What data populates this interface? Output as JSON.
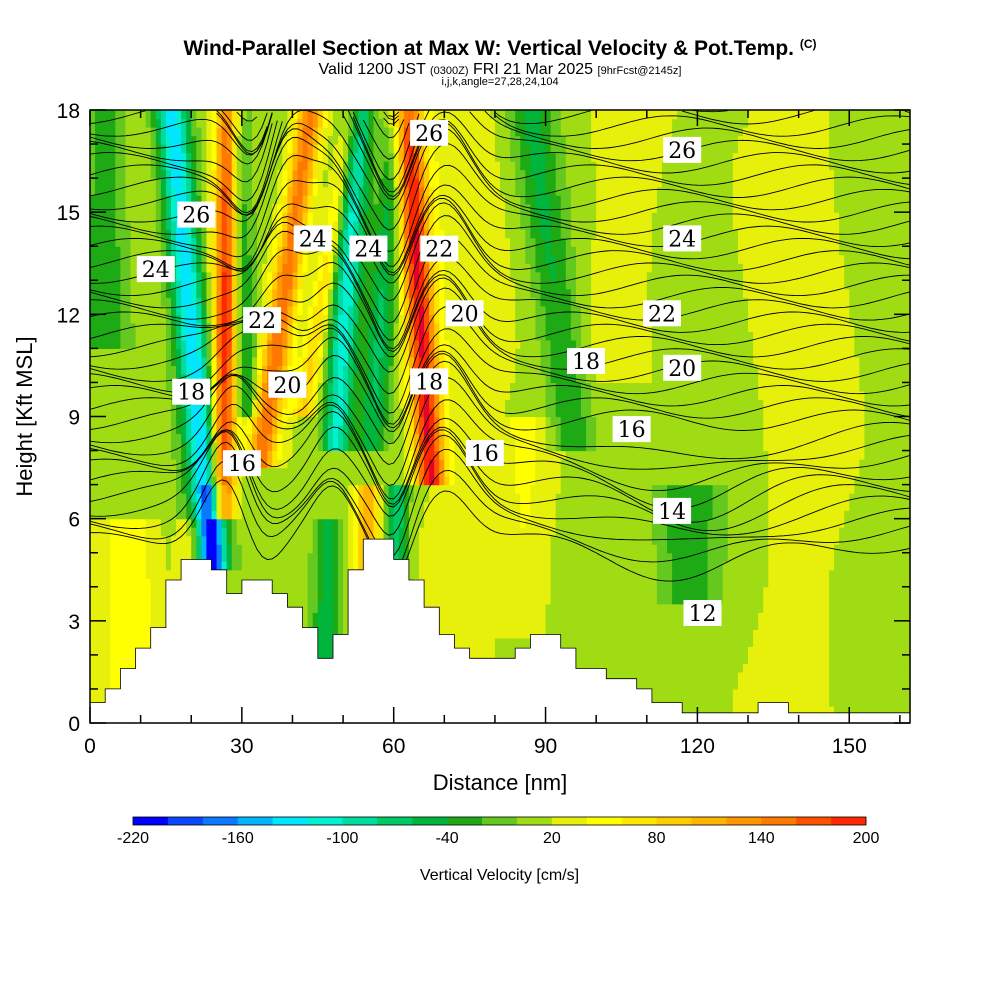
{
  "header": {
    "title": "Wind-Parallel Section at Max W: Vertical Velocity & Pot.Temp.",
    "title_mark": "(C)",
    "valid_a": "Valid 1200 JST",
    "valid_utc": "(0300Z)",
    "valid_b": "FRI 21 Mar 2025",
    "forecast": "[9hrFcst@2145z]",
    "params": "i,j,k,angle=27,28,24,104"
  },
  "chart_data": {
    "type": "heatmap",
    "xlabel": "Distance [nm]",
    "ylabel": "Height [Kft MSL]",
    "xlim": [
      0,
      162
    ],
    "ylim": [
      0,
      18
    ],
    "x_ticks": [
      "0",
      "30",
      "60",
      "90",
      "120",
      "150"
    ],
    "x_tick_values": [
      0,
      30,
      60,
      90,
      120,
      150
    ],
    "y_ticks": [
      "0",
      "3",
      "6",
      "9",
      "12",
      "15",
      "18"
    ],
    "y_tick_values": [
      0,
      3,
      6,
      9,
      12,
      15,
      18
    ],
    "colorbar": {
      "label": "Vertical Velocity [cm/s]",
      "range": [
        -220,
        200
      ],
      "step": 20,
      "tick_labels": [
        "-220",
        "-160",
        "-100",
        "-40",
        "20",
        "80",
        "140",
        "200"
      ],
      "tick_values": [
        -220,
        -160,
        -100,
        -40,
        20,
        80,
        140,
        200
      ],
      "colors": [
        "#0000ff",
        "#0a46ff",
        "#0a78ff",
        "#00b4ff",
        "#00e6ff",
        "#00f0d2",
        "#00dca0",
        "#00c864",
        "#00b43c",
        "#1eaa14",
        "#64c81e",
        "#a0dc14",
        "#e6f00a",
        "#ffff00",
        "#ffe600",
        "#ffcd00",
        "#ffb400",
        "#ff9600",
        "#ff7800",
        "#ff5000",
        "#ff2800",
        "#e6002d",
        "#be0050",
        "#8c0064",
        "#5a0078"
      ]
    },
    "theta_contour_labels": [
      {
        "text": "26",
        "x": 21,
        "y": 14.9
      },
      {
        "text": "24",
        "x": 13,
        "y": 13.3
      },
      {
        "text": "22",
        "x": 34,
        "y": 11.8
      },
      {
        "text": "18",
        "x": 20,
        "y": 9.7
      },
      {
        "text": "20",
        "x": 39,
        "y": 9.9
      },
      {
        "text": "16",
        "x": 30,
        "y": 7.6
      },
      {
        "text": "24",
        "x": 44,
        "y": 14.2
      },
      {
        "text": "24",
        "x": 55,
        "y": 13.9
      },
      {
        "text": "26",
        "x": 67,
        "y": 17.3
      },
      {
        "text": "22",
        "x": 69,
        "y": 13.9
      },
      {
        "text": "20",
        "x": 74,
        "y": 12.0
      },
      {
        "text": "18",
        "x": 67,
        "y": 10.0
      },
      {
        "text": "16",
        "x": 78,
        "y": 7.9
      },
      {
        "text": "18",
        "x": 98,
        "y": 10.6
      },
      {
        "text": "16",
        "x": 107,
        "y": 8.6
      },
      {
        "text": "22",
        "x": 113,
        "y": 12.0
      },
      {
        "text": "20",
        "x": 117,
        "y": 10.4
      },
      {
        "text": "24",
        "x": 117,
        "y": 14.2
      },
      {
        "text": "26",
        "x": 117,
        "y": 16.8
      },
      {
        "text": "14",
        "x": 115,
        "y": 6.2
      },
      {
        "text": "12",
        "x": 121,
        "y": 3.2
      }
    ],
    "terrain_height_kft": [
      {
        "x": 0,
        "h": 0.6
      },
      {
        "x": 3,
        "h": 1.0
      },
      {
        "x": 6,
        "h": 1.6
      },
      {
        "x": 9,
        "h": 2.2
      },
      {
        "x": 12,
        "h": 2.8
      },
      {
        "x": 15,
        "h": 4.2
      },
      {
        "x": 18,
        "h": 4.8
      },
      {
        "x": 21,
        "h": 4.8
      },
      {
        "x": 24,
        "h": 4.5
      },
      {
        "x": 27,
        "h": 3.8
      },
      {
        "x": 30,
        "h": 4.2
      },
      {
        "x": 33,
        "h": 4.2
      },
      {
        "x": 36,
        "h": 3.8
      },
      {
        "x": 39,
        "h": 3.4
      },
      {
        "x": 42,
        "h": 2.8
      },
      {
        "x": 45,
        "h": 1.9
      },
      {
        "x": 48,
        "h": 2.6
      },
      {
        "x": 51,
        "h": 4.5
      },
      {
        "x": 54,
        "h": 5.4
      },
      {
        "x": 57,
        "h": 5.4
      },
      {
        "x": 60,
        "h": 4.8
      },
      {
        "x": 63,
        "h": 4.2
      },
      {
        "x": 66,
        "h": 3.4
      },
      {
        "x": 69,
        "h": 2.6
      },
      {
        "x": 72,
        "h": 2.2
      },
      {
        "x": 75,
        "h": 1.9
      },
      {
        "x": 78,
        "h": 1.9
      },
      {
        "x": 81,
        "h": 1.9
      },
      {
        "x": 84,
        "h": 2.2
      },
      {
        "x": 87,
        "h": 2.6
      },
      {
        "x": 90,
        "h": 2.6
      },
      {
        "x": 93,
        "h": 2.2
      },
      {
        "x": 96,
        "h": 1.6
      },
      {
        "x": 99,
        "h": 1.6
      },
      {
        "x": 102,
        "h": 1.3
      },
      {
        "x": 105,
        "h": 1.3
      },
      {
        "x": 108,
        "h": 1.0
      },
      {
        "x": 111,
        "h": 0.6
      },
      {
        "x": 114,
        "h": 0.6
      },
      {
        "x": 117,
        "h": 0.3
      },
      {
        "x": 120,
        "h": 0.3
      },
      {
        "x": 123,
        "h": 0.3
      },
      {
        "x": 126,
        "h": 0.3
      },
      {
        "x": 129,
        "h": 0.3
      },
      {
        "x": 132,
        "h": 0.6
      },
      {
        "x": 135,
        "h": 0.6
      },
      {
        "x": 138,
        "h": 0.3
      },
      {
        "x": 141,
        "h": 0.3
      },
      {
        "x": 144,
        "h": 0.3
      },
      {
        "x": 147,
        "h": 0.3
      },
      {
        "x": 150,
        "h": 0.3
      },
      {
        "x": 153,
        "h": 0.3
      },
      {
        "x": 156,
        "h": 0.3
      },
      {
        "x": 159,
        "h": 0.3
      }
    ]
  }
}
